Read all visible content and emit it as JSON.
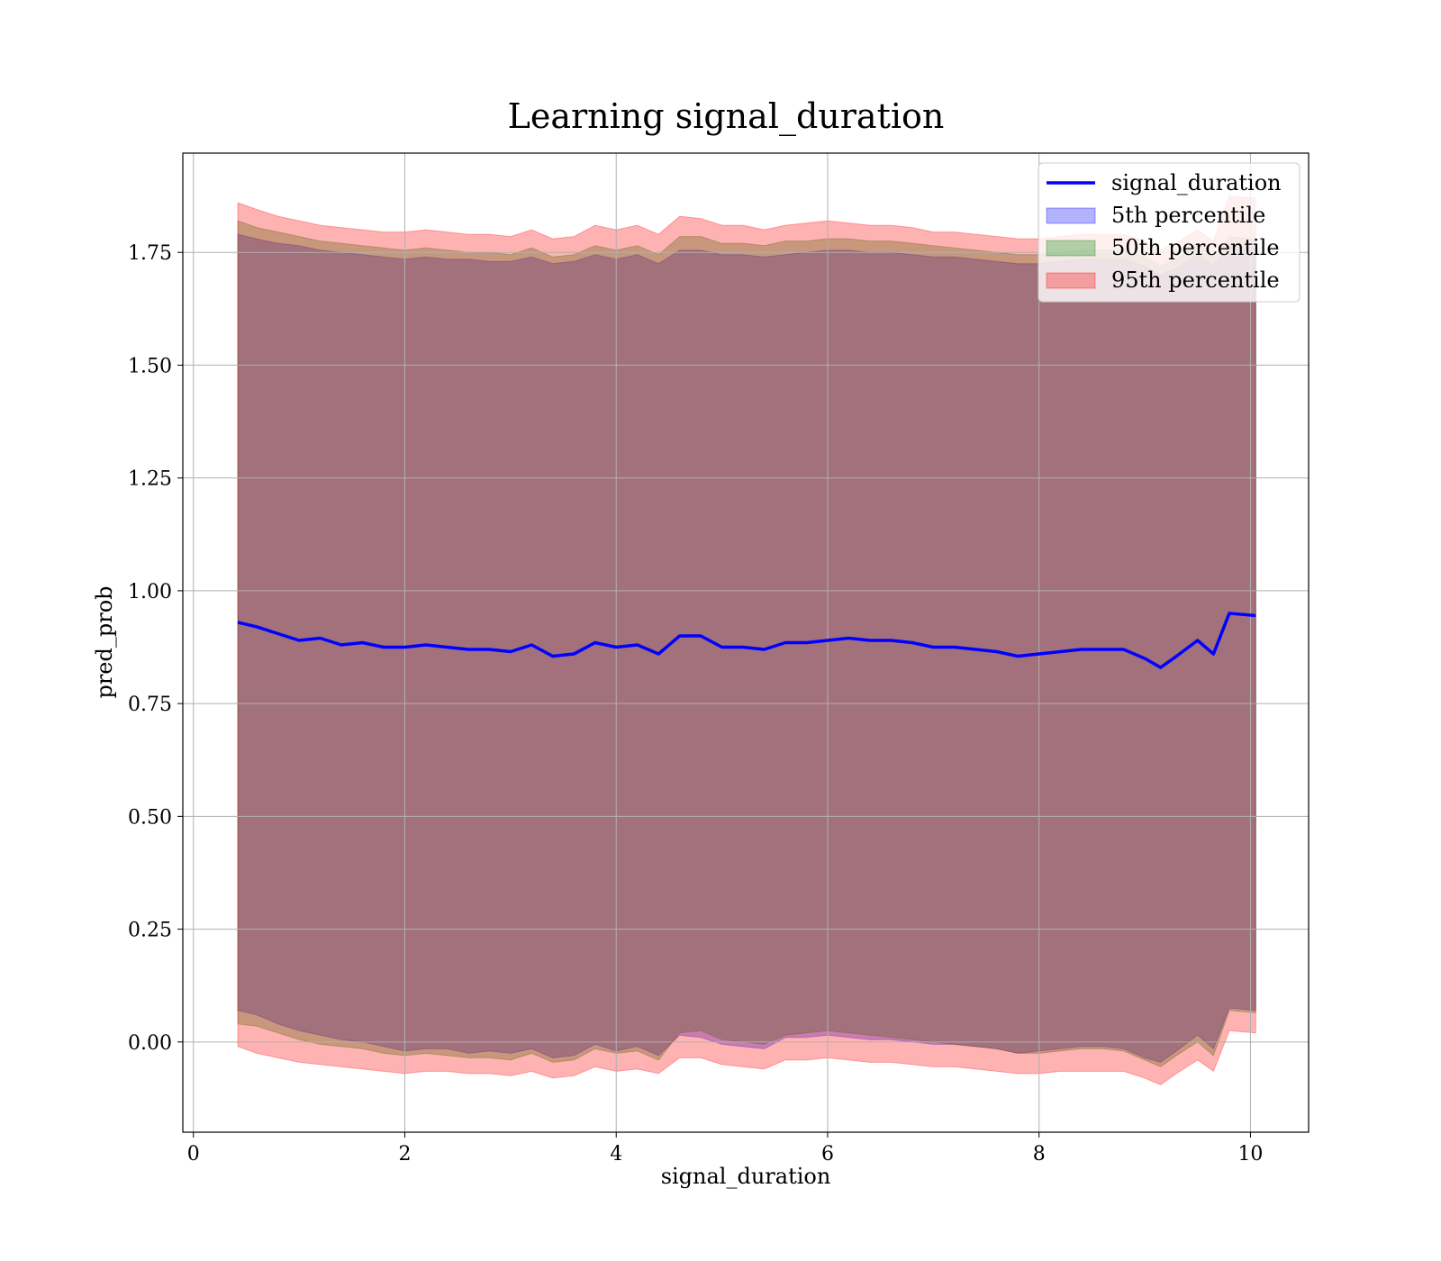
{
  "chart_data": {
    "type": "line",
    "title": "Learning signal_duration",
    "xlabel": "signal_duration",
    "ylabel": "pred_prob",
    "xlim": [
      -0.1,
      10.55
    ],
    "ylim": [
      -0.2,
      1.97
    ],
    "xticks": [
      0,
      2,
      4,
      6,
      8,
      10
    ],
    "xtick_labels": [
      "0",
      "2",
      "4",
      "6",
      "8",
      "10"
    ],
    "yticks": [
      0.0,
      0.25,
      0.5,
      0.75,
      1.0,
      1.25,
      1.5,
      1.75
    ],
    "ytick_labels": [
      "0.00",
      "0.25",
      "0.50",
      "0.75",
      "1.00",
      "1.25",
      "1.50",
      "1.75"
    ],
    "grid": true,
    "legend_position": "top-right",
    "x": [
      0.42,
      0.6,
      0.8,
      1.0,
      1.2,
      1.4,
      1.6,
      1.8,
      2.0,
      2.2,
      2.4,
      2.6,
      2.8,
      3.0,
      3.2,
      3.4,
      3.6,
      3.8,
      4.0,
      4.2,
      4.4,
      4.6,
      4.8,
      5.0,
      5.2,
      5.4,
      5.6,
      5.8,
      6.0,
      6.2,
      6.4,
      6.6,
      6.8,
      7.0,
      7.2,
      7.4,
      7.6,
      7.8,
      8.0,
      8.2,
      8.4,
      8.6,
      8.8,
      9.0,
      9.15,
      9.3,
      9.5,
      9.65,
      9.8,
      10.05
    ],
    "series": [
      {
        "name": "signal_duration",
        "kind": "line",
        "color": "#0000ff",
        "values": [
          0.93,
          0.92,
          0.905,
          0.89,
          0.895,
          0.88,
          0.885,
          0.875,
          0.875,
          0.88,
          0.875,
          0.87,
          0.87,
          0.865,
          0.88,
          0.855,
          0.86,
          0.885,
          0.875,
          0.88,
          0.86,
          0.9,
          0.9,
          0.875,
          0.875,
          0.87,
          0.885,
          0.885,
          0.89,
          0.895,
          0.89,
          0.89,
          0.885,
          0.875,
          0.875,
          0.87,
          0.865,
          0.855,
          0.86,
          0.865,
          0.87,
          0.87,
          0.87,
          0.85,
          0.83,
          0.855,
          0.89,
          0.86,
          0.95,
          0.945
        ]
      },
      {
        "name": "5th percentile",
        "kind": "band",
        "color": "#0000ff",
        "lower": [
          0.07,
          0.06,
          0.04,
          0.025,
          0.015,
          0.005,
          0.0,
          -0.01,
          -0.02,
          -0.015,
          -0.015,
          -0.025,
          -0.02,
          -0.025,
          -0.015,
          -0.035,
          -0.03,
          -0.005,
          -0.02,
          -0.01,
          -0.03,
          0.015,
          0.01,
          -0.005,
          -0.01,
          -0.015,
          0.01,
          0.01,
          0.015,
          0.01,
          0.005,
          0.005,
          0.0,
          -0.005,
          -0.005,
          -0.01,
          -0.015,
          -0.025,
          -0.02,
          -0.015,
          -0.01,
          -0.01,
          -0.015,
          -0.035,
          -0.045,
          -0.02,
          0.015,
          -0.015,
          0.075,
          0.07
        ],
        "upper": [
          1.79,
          1.78,
          1.77,
          1.765,
          1.755,
          1.75,
          1.745,
          1.74,
          1.735,
          1.74,
          1.735,
          1.735,
          1.73,
          1.73,
          1.74,
          1.725,
          1.73,
          1.745,
          1.735,
          1.745,
          1.725,
          1.755,
          1.755,
          1.745,
          1.745,
          1.74,
          1.745,
          1.75,
          1.755,
          1.755,
          1.75,
          1.75,
          1.745,
          1.74,
          1.74,
          1.735,
          1.73,
          1.725,
          1.725,
          1.73,
          1.735,
          1.735,
          1.735,
          1.72,
          1.7,
          1.715,
          1.745,
          1.72,
          1.765,
          1.76
        ]
      },
      {
        "name": "50th percentile",
        "kind": "band",
        "color": "#008000",
        "lower": [
          0.04,
          0.035,
          0.02,
          0.005,
          -0.005,
          -0.01,
          -0.015,
          -0.025,
          -0.03,
          -0.025,
          -0.03,
          -0.035,
          -0.035,
          -0.04,
          -0.025,
          -0.045,
          -0.04,
          -0.015,
          -0.025,
          -0.02,
          -0.04,
          0.02,
          0.025,
          0.005,
          0.0,
          -0.005,
          0.015,
          0.02,
          0.025,
          0.02,
          0.015,
          0.01,
          0.005,
          0.0,
          -0.005,
          -0.01,
          -0.015,
          -0.025,
          -0.025,
          -0.02,
          -0.015,
          -0.015,
          -0.02,
          -0.04,
          -0.055,
          -0.03,
          0.0,
          -0.03,
          0.07,
          0.065
        ],
        "upper": [
          1.82,
          1.805,
          1.795,
          1.785,
          1.775,
          1.77,
          1.765,
          1.76,
          1.755,
          1.76,
          1.755,
          1.75,
          1.75,
          1.745,
          1.76,
          1.74,
          1.745,
          1.765,
          1.755,
          1.765,
          1.745,
          1.785,
          1.785,
          1.77,
          1.77,
          1.765,
          1.775,
          1.775,
          1.78,
          1.78,
          1.775,
          1.775,
          1.77,
          1.765,
          1.76,
          1.755,
          1.75,
          1.745,
          1.745,
          1.75,
          1.755,
          1.755,
          1.755,
          1.74,
          1.72,
          1.735,
          1.77,
          1.74,
          1.785,
          1.78
        ]
      },
      {
        "name": "95th percentile",
        "kind": "band",
        "color": "#ff0000",
        "lower": [
          -0.01,
          -0.025,
          -0.035,
          -0.045,
          -0.05,
          -0.055,
          -0.06,
          -0.065,
          -0.07,
          -0.065,
          -0.065,
          -0.07,
          -0.07,
          -0.075,
          -0.065,
          -0.08,
          -0.075,
          -0.055,
          -0.065,
          -0.06,
          -0.07,
          -0.035,
          -0.035,
          -0.05,
          -0.055,
          -0.06,
          -0.04,
          -0.04,
          -0.035,
          -0.04,
          -0.045,
          -0.045,
          -0.05,
          -0.055,
          -0.055,
          -0.06,
          -0.065,
          -0.07,
          -0.07,
          -0.065,
          -0.065,
          -0.065,
          -0.065,
          -0.08,
          -0.095,
          -0.07,
          -0.04,
          -0.065,
          0.025,
          0.02
        ],
        "upper": [
          1.86,
          1.845,
          1.83,
          1.82,
          1.81,
          1.805,
          1.8,
          1.795,
          1.795,
          1.8,
          1.795,
          1.79,
          1.79,
          1.785,
          1.8,
          1.78,
          1.785,
          1.81,
          1.8,
          1.81,
          1.79,
          1.83,
          1.825,
          1.81,
          1.81,
          1.8,
          1.81,
          1.815,
          1.82,
          1.815,
          1.81,
          1.81,
          1.805,
          1.795,
          1.795,
          1.79,
          1.785,
          1.78,
          1.78,
          1.785,
          1.79,
          1.79,
          1.79,
          1.775,
          1.755,
          1.77,
          1.8,
          1.775,
          1.875,
          1.87
        ]
      }
    ]
  }
}
